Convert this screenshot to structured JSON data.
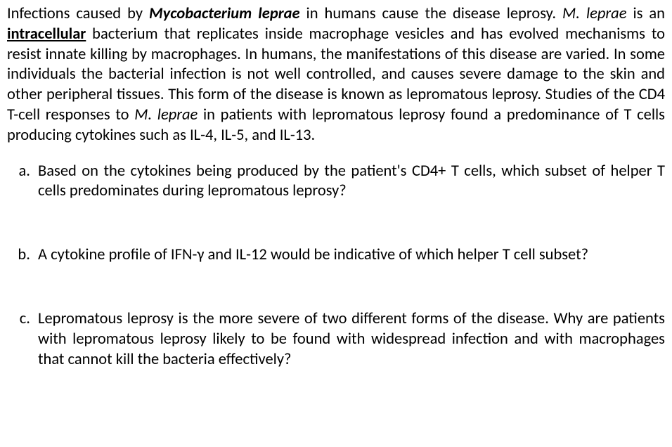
{
  "intro": {
    "p1a": "Infections caused by ",
    "p1b": "Mycobacterium leprae",
    "p1c": " in humans cause the disease leprosy. ",
    "p1d": "M. leprae",
    "p1e": " is an ",
    "p1f": "intracellular",
    "p1g": " bacterium that replicates inside macrophage vesicles and has evolved mechanisms to resist innate killing by macrophages. In humans, the manifestations of this disease are varied. In some individuals the bacterial infection is not well controlled, and causes severe damage to the skin and other peripheral tissues. This form of the disease is known as lepromatous leprosy. Studies of the CD4 T-cell responses to ",
    "p1h": "M. leprae",
    "p1i": " in patients with lepromatous leprosy found a predominance of T cells producing cytokines such as IL-4, IL-5, and IL-13."
  },
  "questions": {
    "a": "Based on the cytokines being produced by the patient's CD4+ T cells, which subset of helper T cells predominates during lepromatous leprosy?",
    "b": "A cytokine profile of IFN-γ and IL-12 would be indicative of which helper T cell subset?",
    "c": "Lepromatous leprosy is the more severe of two different forms of the disease. Why are patients with lepromatous leprosy likely to be found with widespread infection and with macrophages that cannot kill the bacteria effectively?"
  }
}
